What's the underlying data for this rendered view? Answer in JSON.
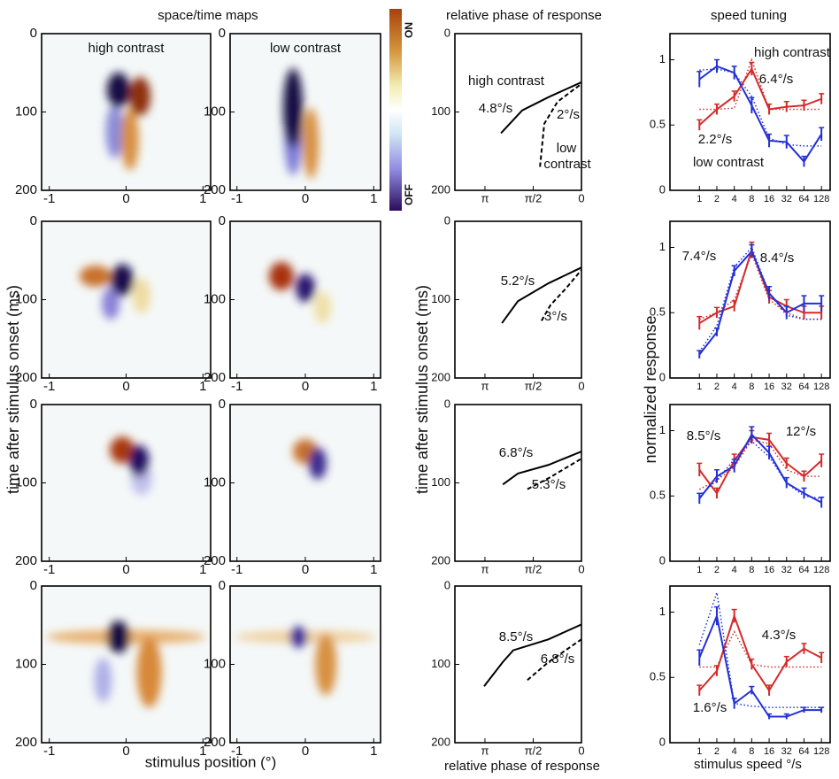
{
  "headers": {
    "maps": "space/time maps",
    "phase": "relative phase of response",
    "speed": "speed tuning"
  },
  "colorbar": {
    "top": "ON",
    "bottom": "OFF"
  },
  "axis_labels": {
    "maps_y": "time after stimulus onset (ms)",
    "maps_x": "stimulus position (°)",
    "phase_y": "time after stimulus onset (ms)",
    "phase_x": "relative phase of response",
    "speed_y": "normalized response",
    "speed_x": "stimulus speed °/s"
  },
  "chart_data": [
    {
      "type": "heatmap",
      "subtitle": "high contrast",
      "xlim": [
        -1.1,
        1.1
      ],
      "xticks": [
        -1,
        0,
        1
      ],
      "ylim": [
        200,
        0
      ],
      "yticks": [
        0,
        100,
        200
      ]
    },
    {
      "type": "heatmap",
      "subtitle": "low contrast",
      "xlim": [
        -1.1,
        1.1
      ],
      "xticks": [
        -1,
        0,
        1
      ],
      "ylim": [
        200,
        0
      ],
      "yticks": [
        0,
        100,
        200
      ]
    },
    {
      "type": "line",
      "xlim": [
        4.12,
        0
      ],
      "xticks": [
        {
          "value": 3.1416,
          "label": "π"
        },
        {
          "value": 1.5708,
          "label": "π/2"
        },
        0
      ],
      "ylim": [
        200,
        0
      ],
      "yticks": [
        0,
        100,
        200
      ],
      "series": [
        {
          "color": "#000000",
          "style": "solid",
          "x": [
            2.62,
            1.93,
            1.07,
            0
          ],
          "values": [
            127,
            98,
            81,
            62
          ]
        },
        {
          "color": "#000000",
          "style": "dashed",
          "x": [
            1.35,
            1.21,
            0.78,
            0
          ],
          "values": [
            170,
            115,
            87,
            64
          ]
        }
      ],
      "annotations": [
        {
          "text": "high contrast",
          "color": "#000000"
        },
        {
          "text": "4.8°/s",
          "color": "#000000"
        },
        {
          "text": "2°/s",
          "color": "#000000"
        },
        {
          "text": "low",
          "color": "#000000"
        },
        {
          "text": "contrast",
          "color": "#000000"
        }
      ]
    },
    {
      "type": "line",
      "xlog": true,
      "x": [
        1,
        2,
        4,
        8,
        16,
        32,
        64,
        128
      ],
      "xlim": [
        0.31,
        181
      ],
      "xticks": [
        1,
        2,
        4,
        8,
        16,
        32,
        64,
        128
      ],
      "ylim": [
        0,
        1.2
      ],
      "yticks": [
        0,
        0.5,
        1
      ],
      "series": [
        {
          "color": "#d42a2a",
          "style": "solid",
          "values": [
            0.5,
            0.62,
            0.72,
            0.93,
            0.62,
            0.64,
            0.65,
            0.7
          ],
          "errors": [
            0.04,
            0.04,
            0.04,
            0.05,
            0.04,
            0.04,
            0.04,
            0.04
          ]
        },
        {
          "color": "#2230d8",
          "style": "solid",
          "values": [
            0.85,
            0.95,
            0.9,
            0.65,
            0.38,
            0.37,
            0.22,
            0.43
          ],
          "errors": [
            0.06,
            0.05,
            0.05,
            0.06,
            0.05,
            0.05,
            0.04,
            0.05
          ]
        },
        {
          "color": "#d42a2a",
          "style": "dotted",
          "values": [
            0.62,
            0.62,
            0.63,
            1.0,
            0.62,
            0.62,
            0.62,
            0.62
          ]
        },
        {
          "color": "#2230d8",
          "style": "dotted",
          "values": [
            0.92,
            0.93,
            0.9,
            0.72,
            0.4,
            0.35,
            0.34,
            0.34
          ]
        }
      ],
      "annotations": [
        {
          "text": "high contrast",
          "color": "#d42a2a"
        },
        {
          "text": "6.4°/s",
          "color": "#d42a2a"
        },
        {
          "text": "2.2°/s",
          "color": "#2230d8"
        },
        {
          "text": "low contrast",
          "color": "#2230d8"
        }
      ]
    },
    {
      "type": "heatmap",
      "xlim": [
        -1.1,
        1.1
      ],
      "xticks": [
        -1,
        0,
        1
      ],
      "ylim": [
        200,
        0
      ],
      "yticks": [
        0,
        100,
        200
      ]
    },
    {
      "type": "heatmap",
      "xlim": [
        -1.1,
        1.1
      ],
      "xticks": [
        -1,
        0,
        1
      ],
      "ylim": [
        200,
        0
      ],
      "yticks": [
        0,
        100,
        200
      ]
    },
    {
      "type": "line",
      "xlim": [
        4.12,
        0
      ],
      "xticks": [
        {
          "value": 3.1416,
          "label": "π"
        },
        {
          "value": 1.5708,
          "label": "π/2"
        },
        0
      ],
      "ylim": [
        200,
        0
      ],
      "yticks": [
        0,
        100,
        200
      ],
      "series": [
        {
          "color": "#000000",
          "style": "solid",
          "x": [
            2.59,
            2.07,
            1.07,
            0
          ],
          "values": [
            130,
            102,
            79,
            59
          ]
        },
        {
          "color": "#000000",
          "style": "dashed",
          "x": [
            1.3,
            1.01,
            0.49,
            0
          ],
          "values": [
            127,
            107,
            85,
            62
          ]
        }
      ],
      "annotations": [
        {
          "text": "5.2°/s",
          "color": "#000000"
        },
        {
          "text": "3°/s",
          "color": "#000000"
        }
      ]
    },
    {
      "type": "line",
      "xlog": true,
      "x": [
        1,
        2,
        4,
        8,
        16,
        32,
        64,
        128
      ],
      "xlim": [
        0.31,
        181
      ],
      "xticks": [
        1,
        2,
        4,
        8,
        16,
        32,
        64,
        128
      ],
      "ylim": [
        0,
        1.2
      ],
      "yticks": [
        0,
        0.5,
        1
      ],
      "series": [
        {
          "color": "#d42a2a",
          "style": "solid",
          "values": [
            0.42,
            0.5,
            0.55,
            0.98,
            0.62,
            0.55,
            0.5,
            0.5
          ],
          "errors": [
            0.05,
            0.04,
            0.04,
            0.06,
            0.05,
            0.05,
            0.05,
            0.05
          ]
        },
        {
          "color": "#2230d8",
          "style": "solid",
          "values": [
            0.18,
            0.35,
            0.82,
            0.97,
            0.65,
            0.5,
            0.57,
            0.57
          ],
          "errors": [
            0.03,
            0.03,
            0.04,
            0.05,
            0.05,
            0.05,
            0.06,
            0.06
          ]
        },
        {
          "color": "#d42a2a",
          "style": "dotted",
          "values": [
            0.45,
            0.5,
            0.6,
            0.95,
            0.6,
            0.5,
            0.45,
            0.45
          ]
        },
        {
          "color": "#2230d8",
          "style": "dotted",
          "values": [
            0.2,
            0.4,
            0.85,
            1.0,
            0.65,
            0.48,
            0.45,
            0.45
          ]
        }
      ],
      "annotations": [
        {
          "text": "7.4°/s",
          "color": "#2230d8"
        },
        {
          "text": "8.4°/s",
          "color": "#d42a2a"
        }
      ]
    },
    {
      "type": "heatmap",
      "xlim": [
        -1.1,
        1.1
      ],
      "xticks": [
        -1,
        0,
        1
      ],
      "ylim": [
        200,
        0
      ],
      "yticks": [
        0,
        100,
        200
      ]
    },
    {
      "type": "heatmap",
      "xlim": [
        -1.1,
        1.1
      ],
      "xticks": [
        -1,
        0,
        1
      ],
      "ylim": [
        200,
        0
      ],
      "yticks": [
        0,
        100,
        200
      ]
    },
    {
      "type": "line",
      "xlim": [
        4.12,
        0
      ],
      "xticks": [
        {
          "value": 3.1416,
          "label": "π"
        },
        {
          "value": 1.5708,
          "label": "π/2"
        },
        0
      ],
      "ylim": [
        200,
        0
      ],
      "yticks": [
        0,
        100,
        200
      ],
      "series": [
        {
          "color": "#000000",
          "style": "solid",
          "x": [
            2.56,
            2.07,
            1.07,
            0
          ],
          "values": [
            102,
            88,
            77,
            60
          ]
        },
        {
          "color": "#000000",
          "style": "dashed",
          "x": [
            1.76,
            1.07,
            0
          ],
          "values": [
            108,
            94,
            69
          ]
        }
      ],
      "annotations": [
        {
          "text": "6.8°/s",
          "color": "#000000"
        },
        {
          "text": "5.3°/s",
          "color": "#000000"
        }
      ]
    },
    {
      "type": "line",
      "xlog": true,
      "x": [
        1,
        2,
        4,
        8,
        16,
        32,
        64,
        128
      ],
      "xlim": [
        0.31,
        181
      ],
      "xticks": [
        1,
        2,
        4,
        8,
        16,
        32,
        64,
        128
      ],
      "ylim": [
        0,
        1.2
      ],
      "yticks": [
        0,
        0.5,
        1
      ],
      "series": [
        {
          "color": "#d42a2a",
          "style": "solid",
          "values": [
            0.7,
            0.52,
            0.77,
            0.95,
            0.93,
            0.75,
            0.65,
            0.77
          ],
          "errors": [
            0.05,
            0.04,
            0.05,
            0.05,
            0.05,
            0.04,
            0.04,
            0.05
          ]
        },
        {
          "color": "#2230d8",
          "style": "solid",
          "values": [
            0.48,
            0.65,
            0.73,
            0.97,
            0.83,
            0.6,
            0.52,
            0.45
          ],
          "errors": [
            0.04,
            0.05,
            0.05,
            0.06,
            0.05,
            0.04,
            0.04,
            0.04
          ]
        },
        {
          "color": "#d42a2a",
          "style": "dotted",
          "values": [
            0.55,
            0.62,
            0.72,
            0.93,
            0.9,
            0.7,
            0.65,
            0.65
          ]
        },
        {
          "color": "#2230d8",
          "style": "dotted",
          "values": [
            0.5,
            0.62,
            0.78,
            0.92,
            0.8,
            0.6,
            0.5,
            0.48
          ]
        }
      ],
      "annotations": [
        {
          "text": "8.5°/s",
          "color": "#2230d8"
        },
        {
          "text": "12°/s",
          "color": "#d42a2a"
        }
      ]
    },
    {
      "type": "heatmap",
      "xlim": [
        -1.1,
        1.1
      ],
      "xticks": [
        -1,
        0,
        1
      ],
      "ylim": [
        200,
        0
      ],
      "yticks": [
        0,
        100,
        200
      ]
    },
    {
      "type": "heatmap",
      "xlim": [
        -1.1,
        1.1
      ],
      "xticks": [
        -1,
        0,
        1
      ],
      "ylim": [
        200,
        0
      ],
      "yticks": [
        0,
        100,
        200
      ]
    },
    {
      "type": "line",
      "xlim": [
        4.12,
        0
      ],
      "xticks": [
        {
          "value": 3.1416,
          "label": "π"
        },
        {
          "value": 1.5708,
          "label": "π/2"
        },
        0
      ],
      "ylim": [
        200,
        0
      ],
      "yticks": [
        0,
        100,
        200
      ],
      "series": [
        {
          "color": "#000000",
          "style": "solid",
          "x": [
            3.17,
            2.56,
            2.22,
            1.07,
            0
          ],
          "values": [
            128,
            97,
            82,
            68,
            49
          ]
        },
        {
          "color": "#000000",
          "style": "dashed",
          "x": [
            1.76,
            1.07,
            0
          ],
          "values": [
            120,
            97,
            68
          ]
        }
      ],
      "annotations": [
        {
          "text": "8.5°/s",
          "color": "#000000"
        },
        {
          "text": "6.8°/s",
          "color": "#000000"
        }
      ]
    },
    {
      "type": "line",
      "xlog": true,
      "x": [
        1,
        2,
        4,
        8,
        16,
        32,
        64,
        128
      ],
      "xlim": [
        0.31,
        181
      ],
      "xticks": [
        1,
        2,
        4,
        8,
        16,
        32,
        64,
        128
      ],
      "ylim": [
        0,
        1.2
      ],
      "yticks": [
        0,
        0.5,
        1
      ],
      "series": [
        {
          "color": "#d42a2a",
          "style": "solid",
          "values": [
            0.4,
            0.55,
            0.97,
            0.6,
            0.4,
            0.62,
            0.72,
            0.65
          ],
          "errors": [
            0.04,
            0.04,
            0.05,
            0.04,
            0.04,
            0.04,
            0.04,
            0.04
          ]
        },
        {
          "color": "#2230d8",
          "style": "solid",
          "values": [
            0.65,
            0.97,
            0.3,
            0.4,
            0.2,
            0.2,
            0.25,
            0.25
          ],
          "errors": [
            0.06,
            0.07,
            0.04,
            0.03,
            0.02,
            0.02,
            0.02,
            0.02
          ]
        },
        {
          "color": "#d42a2a",
          "style": "dotted",
          "values": [
            0.58,
            0.58,
            0.85,
            0.6,
            0.58,
            0.58,
            0.58,
            0.58
          ]
        },
        {
          "color": "#2230d8",
          "style": "dotted",
          "values": [
            0.75,
            1.15,
            0.3,
            0.28,
            0.27,
            0.27,
            0.27,
            0.27
          ]
        }
      ],
      "annotations": [
        {
          "text": "4.3°/s",
          "color": "#d42a2a"
        },
        {
          "text": "1.6°/s",
          "color": "#2230d8"
        }
      ]
    }
  ]
}
